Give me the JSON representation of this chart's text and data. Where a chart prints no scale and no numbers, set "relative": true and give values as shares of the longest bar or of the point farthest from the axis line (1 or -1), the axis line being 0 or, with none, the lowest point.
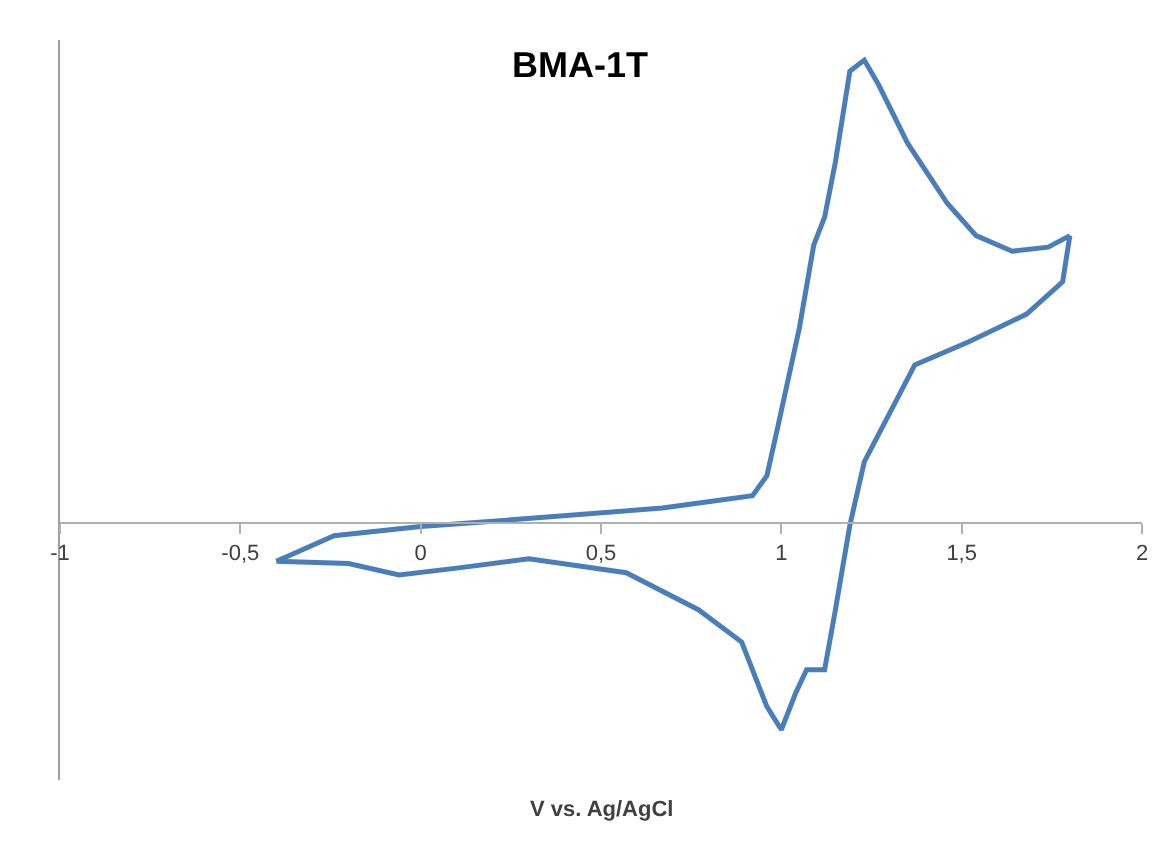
{
  "chart_data": {
    "type": "line",
    "title": "BMA-1T",
    "xlabel": "V vs. Ag/AgCl",
    "relative": true,
    "marker": "none",
    "line_style": "solid",
    "legend": false,
    "xlim": [
      -1,
      2
    ],
    "xticks": [
      -1,
      {
        "value": -0.5,
        "label": "-0,5"
      },
      0,
      {
        "value": 0.5,
        "label": "0,5"
      },
      1,
      {
        "value": 1.5,
        "label": "1,5"
      },
      2
    ],
    "series": [
      {
        "color": "#4a7ebb",
        "x": [
          -0.4,
          -0.24,
          0.0,
          0.36,
          0.67,
          0.92,
          0.96,
          0.99,
          1.05,
          1.09,
          1.12,
          1.15,
          1.19,
          1.23,
          1.27,
          1.35,
          1.46,
          1.54,
          1.64,
          1.74,
          1.8
        ],
        "values": [
          -0.085,
          -0.03,
          -0.01,
          0.011,
          0.03,
          0.057,
          0.1,
          0.205,
          0.42,
          0.6,
          0.66,
          0.78,
          0.976,
          1.0,
          0.946,
          0.82,
          0.69,
          0.62,
          0.586,
          0.595,
          0.62
        ]
      },
      {
        "color": "#4a7ebb",
        "x": [
          1.8,
          1.78,
          1.68,
          1.52,
          1.37,
          1.3,
          1.23,
          1.19,
          1.15,
          1.12,
          1.07,
          1.04,
          1.0,
          0.96,
          0.89,
          0.77,
          0.57,
          0.3,
          0.1,
          -0.06,
          -0.2,
          -0.4
        ],
        "values": [
          0.62,
          0.52,
          0.45,
          0.39,
          0.34,
          0.235,
          0.13,
          -0.007,
          -0.19,
          -0.32,
          -0.32,
          -0.37,
          -0.45,
          -0.4,
          -0.26,
          -0.19,
          -0.11,
          -0.08,
          -0.1,
          -0.115,
          -0.09,
          -0.085
        ]
      }
    ]
  }
}
